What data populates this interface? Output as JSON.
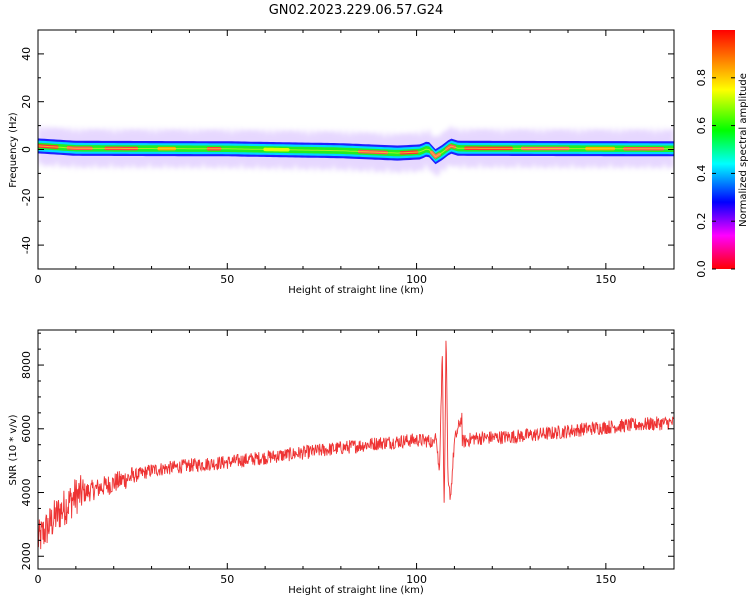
{
  "title": "GN02.2023.229.06.57.G24",
  "chart_data": [
    {
      "type": "heatmap",
      "xlabel": "Height of straight line (km)",
      "ylabel": "Frequency (Hz)",
      "xlim": [
        0,
        168
      ],
      "ylim": [
        -50,
        50
      ],
      "x_ticks": [
        0,
        50,
        100,
        150
      ],
      "y_ticks": [
        40,
        20,
        0,
        -20,
        -40
      ],
      "colorbar": {
        "label": "Normalized spectral amplitude",
        "range": [
          0,
          1
        ],
        "ticks": [
          "0.0",
          "0.2",
          "0.4",
          "0.6",
          "0.8"
        ],
        "colors": [
          "#ff0000",
          "#ff00ff",
          "#0000ff",
          "#00ffff",
          "#00ff00",
          "#ffff00",
          "#ff0000"
        ]
      },
      "band": {
        "center_frequency_hz": [
          [
            0,
            1.5
          ],
          [
            5,
            1.0
          ],
          [
            10,
            0.5
          ],
          [
            50,
            0.3
          ],
          [
            80,
            -0.5
          ],
          [
            95,
            -1.5
          ],
          [
            101,
            -1.0
          ],
          [
            103,
            0.5
          ],
          [
            105,
            -3.0
          ],
          [
            107,
            -1.0
          ],
          [
            109,
            1.5
          ],
          [
            111,
            0.5
          ],
          [
            168,
            0.3
          ]
        ],
        "half_width_hz": 3
      }
    },
    {
      "type": "line",
      "xlabel": "Height of straight line (km)",
      "ylabel": "SNR (10 * v/v)",
      "xlim": [
        0,
        168
      ],
      "ylim": [
        1600,
        9100
      ],
      "x_ticks": [
        0,
        50,
        100,
        150
      ],
      "y_ticks": [
        2000,
        4000,
        6000,
        8000
      ],
      "color": "#ee3333",
      "trend": [
        [
          0,
          2500
        ],
        [
          5,
          3300
        ],
        [
          10,
          3900
        ],
        [
          20,
          4300
        ],
        [
          30,
          4700
        ],
        [
          40,
          4850
        ],
        [
          50,
          4950
        ],
        [
          60,
          5100
        ],
        [
          70,
          5250
        ],
        [
          80,
          5400
        ],
        [
          90,
          5550
        ],
        [
          100,
          5650
        ],
        [
          105,
          5600
        ],
        [
          110,
          5500
        ],
        [
          115,
          5700
        ],
        [
          125,
          5750
        ],
        [
          135,
          5850
        ],
        [
          145,
          6000
        ],
        [
          155,
          6100
        ],
        [
          168,
          6200
        ]
      ],
      "feature_points": [
        [
          104,
          5300
        ],
        [
          105,
          6000
        ],
        [
          106,
          4600
        ],
        [
          106.8,
          8400
        ],
        [
          107.3,
          3300
        ],
        [
          107.8,
          9000
        ],
        [
          108.3,
          4200
        ],
        [
          109,
          3900
        ],
        [
          110,
          5600
        ],
        [
          112,
          6400
        ]
      ]
    }
  ]
}
